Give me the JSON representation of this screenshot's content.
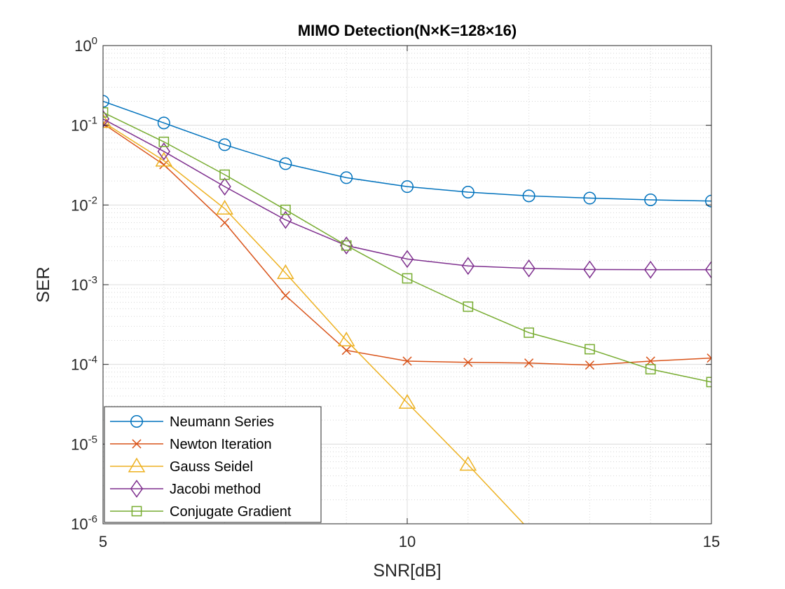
{
  "chart_data": {
    "type": "line",
    "title": "MIMO Detection(N×K=128×16)",
    "xlabel": "SNR[dB]",
    "ylabel": "SER",
    "xlim": [
      5,
      15
    ],
    "ylim": [
      1e-06,
      1
    ],
    "yscale": "log",
    "grid": true,
    "legend_position": "bottom-left",
    "x_ticks": [
      "5",
      "10",
      "15"
    ],
    "y_ticks": [
      {
        "base": "10",
        "exp": "0"
      },
      {
        "base": "10",
        "exp": "-1"
      },
      {
        "base": "10",
        "exp": "-2"
      },
      {
        "base": "10",
        "exp": "-3"
      },
      {
        "base": "10",
        "exp": "-4"
      },
      {
        "base": "10",
        "exp": "-5"
      },
      {
        "base": "10",
        "exp": "-6"
      }
    ],
    "series": [
      {
        "name": "Neumann Series",
        "color": "#0072BD",
        "marker": "circle",
        "x": [
          5,
          6,
          7,
          8,
          9,
          10,
          11,
          12,
          13,
          14,
          15
        ],
        "y": [
          0.2,
          0.107,
          0.057,
          0.033,
          0.022,
          0.017,
          0.0145,
          0.013,
          0.0122,
          0.0116,
          0.0112
        ]
      },
      {
        "name": "Newton Iteration",
        "color": "#D95319",
        "marker": "x",
        "x": [
          5,
          6,
          7,
          8,
          9,
          10,
          11,
          12,
          13,
          14,
          15
        ],
        "y": [
          0.105,
          0.032,
          0.006,
          0.00073,
          0.00015,
          0.00011,
          0.000106,
          0.000104,
          9.8e-05,
          0.00011,
          0.00012
        ]
      },
      {
        "name": "Gauss Seidel",
        "color": "#EDB120",
        "marker": "triangle",
        "x": [
          5,
          6,
          7,
          8,
          9,
          10,
          11,
          12
        ],
        "y": [
          0.11,
          0.036,
          0.009,
          0.0014,
          0.0002,
          3.3e-05,
          5.5e-06,
          8.5e-07
        ]
      },
      {
        "name": "Jacobi method",
        "color": "#7E2F8E",
        "marker": "diamond",
        "x": [
          5,
          6,
          7,
          8,
          9,
          10,
          11,
          12,
          13,
          14,
          15
        ],
        "y": [
          0.12,
          0.047,
          0.017,
          0.0065,
          0.0031,
          0.0021,
          0.00172,
          0.0016,
          0.00155,
          0.00154,
          0.00154
        ]
      },
      {
        "name": "Conjugate Gradient",
        "color": "#77AC30",
        "marker": "square",
        "x": [
          5,
          6,
          7,
          8,
          9,
          10,
          11,
          12,
          13,
          14,
          15
        ],
        "y": [
          0.145,
          0.062,
          0.024,
          0.0087,
          0.0031,
          0.0012,
          0.00053,
          0.00025,
          0.000155,
          8.7e-05,
          6e-05
        ]
      }
    ]
  }
}
